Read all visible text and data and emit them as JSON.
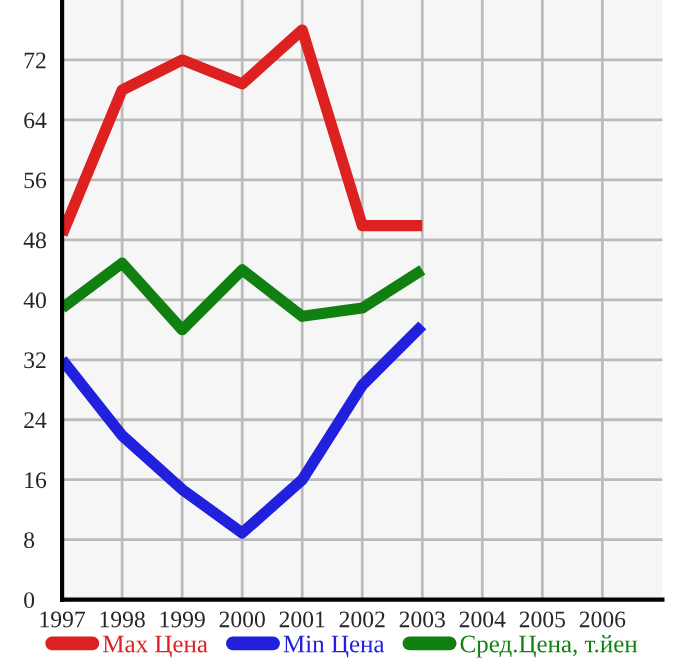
{
  "chart_data": {
    "type": "line",
    "x": [
      1997,
      1998,
      1999,
      2000,
      2001,
      2002,
      2003
    ],
    "series": [
      {
        "name": "Max Цена",
        "color": "#dd2020",
        "values": [
          48.7,
          68,
          72,
          68.8,
          76,
          49.9,
          49.9
        ]
      },
      {
        "name": "Min Цена",
        "color": "#2020dd",
        "values": [
          32,
          21.9,
          14.7,
          8.9,
          16,
          28.6,
          36.6
        ]
      },
      {
        "name": "Сред.Цена, т.йен",
        "color": "#108010",
        "values": [
          38.9,
          44.9,
          36,
          44,
          37.8,
          38.9,
          44
        ]
      }
    ],
    "xlim": [
      1997,
      2007
    ],
    "xticks": [
      1997,
      1998,
      1999,
      2000,
      2001,
      2002,
      2003,
      2004,
      2005,
      2006
    ],
    "ylim": [
      0,
      80
    ],
    "yticks": [
      0,
      8,
      16,
      24,
      32,
      40,
      48,
      56,
      64,
      72
    ],
    "grid": true,
    "legend": "bottom",
    "marker": "none",
    "line_style": "solid"
  }
}
